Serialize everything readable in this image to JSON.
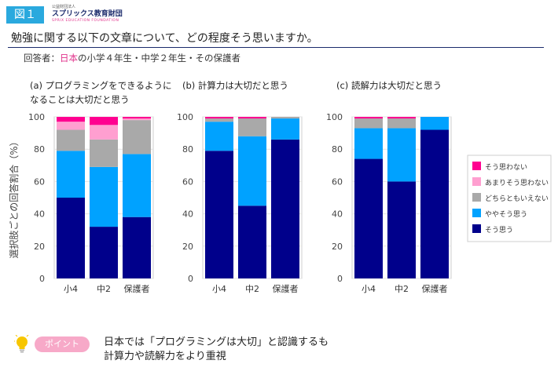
{
  "header": {
    "figure_label": "図１",
    "org_small": "公益財団法人",
    "org_name": "スプリックス教育財団",
    "org_en": "SPRIX EDUCATION FOUNDATION"
  },
  "question": "勉強に関する以下の文章について、どの程度そう思いますか。",
  "respondents": {
    "prefix": "回答者：",
    "highlight": "日本",
    "suffix": "の小学４年生・中学２年生・その保護者"
  },
  "panel_titles": [
    {
      "line1": "(a) プログラミングをできるように",
      "line2": "なることは大切だと思う"
    },
    {
      "line1": "(b) 計算力は大切だと思う",
      "line2": ""
    },
    {
      "line1": "(c) 読解力は大切だと思う",
      "line2": ""
    }
  ],
  "tip": {
    "badge": "ポイント",
    "line1": "日本では「プログラミングは大切」と認識するも",
    "line2": "計算力や読解力をより重視"
  },
  "chart_data": {
    "type": "bar",
    "stacked": true,
    "ylabel": "選択肢ごとの回答割合（%）",
    "ylim": [
      0,
      100
    ],
    "yticks": [
      0,
      20,
      40,
      60,
      80,
      100
    ],
    "categories": [
      "小4",
      "中2",
      "保護者"
    ],
    "legend": {
      "placement": "right",
      "order": [
        "そう思わない",
        "あまりそう思わない",
        "どちらともいえない",
        "ややそう思う",
        "そう思う"
      ]
    },
    "series_colors": {
      "そう思う": "#00008b",
      "ややそう思う": "#00a2ff",
      "どちらともいえない": "#a9a9a9",
      "あまりそう思わない": "#ff9fd0",
      "そう思わない": "#ff0090"
    },
    "panels": [
      {
        "series": [
          {
            "name": "そう思う",
            "values": [
              50,
              32,
              38
            ]
          },
          {
            "name": "ややそう思う",
            "values": [
              29,
              37,
              39
            ]
          },
          {
            "name": "どちらともいえない",
            "values": [
              13,
              17,
              21
            ]
          },
          {
            "name": "あまりそう思わない",
            "values": [
              5,
              9,
              1
            ]
          },
          {
            "name": "そう思わない",
            "values": [
              3,
              5,
              1
            ]
          }
        ]
      },
      {
        "series": [
          {
            "name": "そう思う",
            "values": [
              79,
              45,
              86
            ]
          },
          {
            "name": "ややそう思う",
            "values": [
              18,
              43,
              13
            ]
          },
          {
            "name": "どちらともいえない",
            "values": [
              2,
              11,
              1
            ]
          },
          {
            "name": "あまりそう思わない",
            "values": [
              0,
              0,
              0
            ]
          },
          {
            "name": "そう思わない",
            "values": [
              1,
              1,
              0
            ]
          }
        ]
      },
      {
        "series": [
          {
            "name": "そう思う",
            "values": [
              74,
              60,
              92
            ]
          },
          {
            "name": "ややそう思う",
            "values": [
              19,
              33,
              8
            ]
          },
          {
            "name": "どちらともいえない",
            "values": [
              6,
              6,
              0
            ]
          },
          {
            "name": "あまりそう思わない",
            "values": [
              0,
              0,
              0
            ]
          },
          {
            "name": "そう思わない",
            "values": [
              1,
              1,
              0
            ]
          }
        ]
      }
    ]
  }
}
